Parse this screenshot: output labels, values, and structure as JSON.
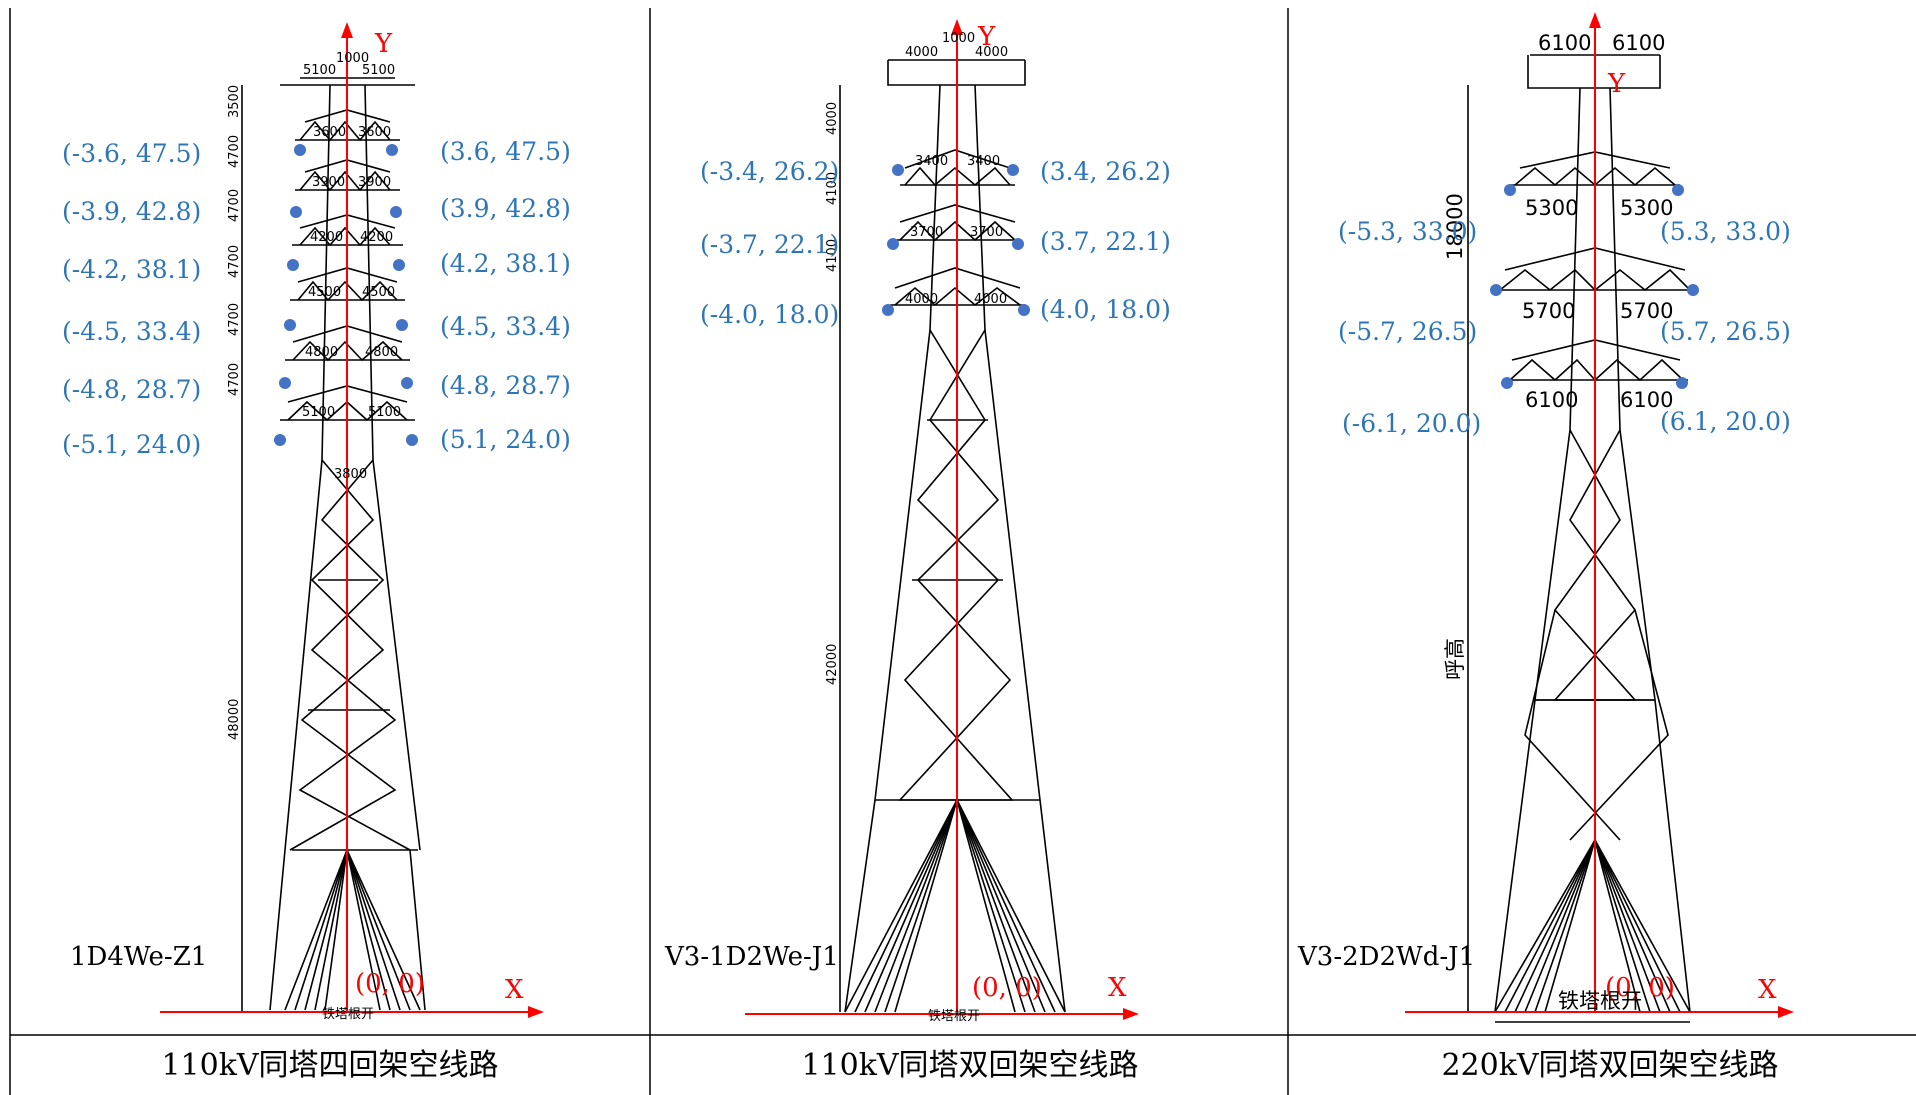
{
  "panels": [
    {
      "model": "1D4We-Z1",
      "caption": "110kV同塔四回架空线路",
      "y_axis": "Y",
      "x_axis": "X",
      "origin": "(0, 0)",
      "base_label": "铁塔根开",
      "top_dims": [
        "5100",
        "1000",
        "5100"
      ],
      "height_dims": [
        "3500",
        "4700",
        "4700",
        "4700",
        "4700",
        "4700",
        "48000"
      ],
      "arm_dims": [
        [
          "3600",
          "3600"
        ],
        [
          "3900",
          "3900"
        ],
        [
          "4200",
          "4200"
        ],
        [
          "4500",
          "4500"
        ],
        [
          "4800",
          "4800"
        ],
        [
          "5100",
          "5100"
        ]
      ],
      "waist_dim": "3800",
      "points_left": [
        "(-3.6, 47.5)",
        "(-3.9, 42.8)",
        "(-4.2, 38.1)",
        "(-4.5, 33.4)",
        "(-4.8, 28.7)",
        "(-5.1, 24.0)"
      ],
      "points_right": [
        "(3.6, 47.5)",
        "(3.9, 42.8)",
        "(4.2, 38.1)",
        "(4.5, 33.4)",
        "(4.8, 28.7)",
        "(5.1, 24.0)"
      ]
    },
    {
      "model": "V3-1D2We-J1",
      "caption": "110kV同塔双回架空线路",
      "y_axis": "Y",
      "x_axis": "X",
      "origin": "(0, 0)",
      "base_label": "铁塔根开",
      "top_dims": [
        "4000",
        "1000",
        "4000"
      ],
      "height_dims": [
        "4000",
        "4100",
        "4100",
        "42000"
      ],
      "arm_dims": [
        [
          "3400",
          "3400"
        ],
        [
          "3700",
          "3700"
        ],
        [
          "4000",
          "4000"
        ]
      ],
      "points_left": [
        "(-3.4, 26.2)",
        "(-3.7, 22.1)",
        "(-4.0, 18.0)"
      ],
      "points_right": [
        "(3.4, 26.2)",
        "(3.7, 22.1)",
        "(4.0, 18.0)"
      ]
    },
    {
      "model": "V3-2D2Wd-J1",
      "caption": "220kV同塔双回架空线路",
      "y_axis": "Y",
      "x_axis": "X",
      "origin": "(0, 0)",
      "base_label": "铁塔根开",
      "top_dims": [
        "6100",
        "6100"
      ],
      "height_dims": [
        "18000"
      ],
      "hugao": "呼高",
      "arm_dims": [
        [
          "5300",
          "5300"
        ],
        [
          "5700",
          "5700"
        ],
        [
          "6100",
          "6100"
        ]
      ],
      "points_left": [
        "(-5.3, 33.0)",
        "(-5.7, 26.5)",
        "(-6.1, 20.0)"
      ],
      "points_right": [
        "(5.3, 33.0)",
        "(5.7, 26.5)",
        "(6.1, 20.0)"
      ]
    }
  ],
  "colors": {
    "axis": "#ff0000",
    "coord_text": "#2e75b6",
    "insulator": "#4472c4",
    "frame": "#000000"
  }
}
